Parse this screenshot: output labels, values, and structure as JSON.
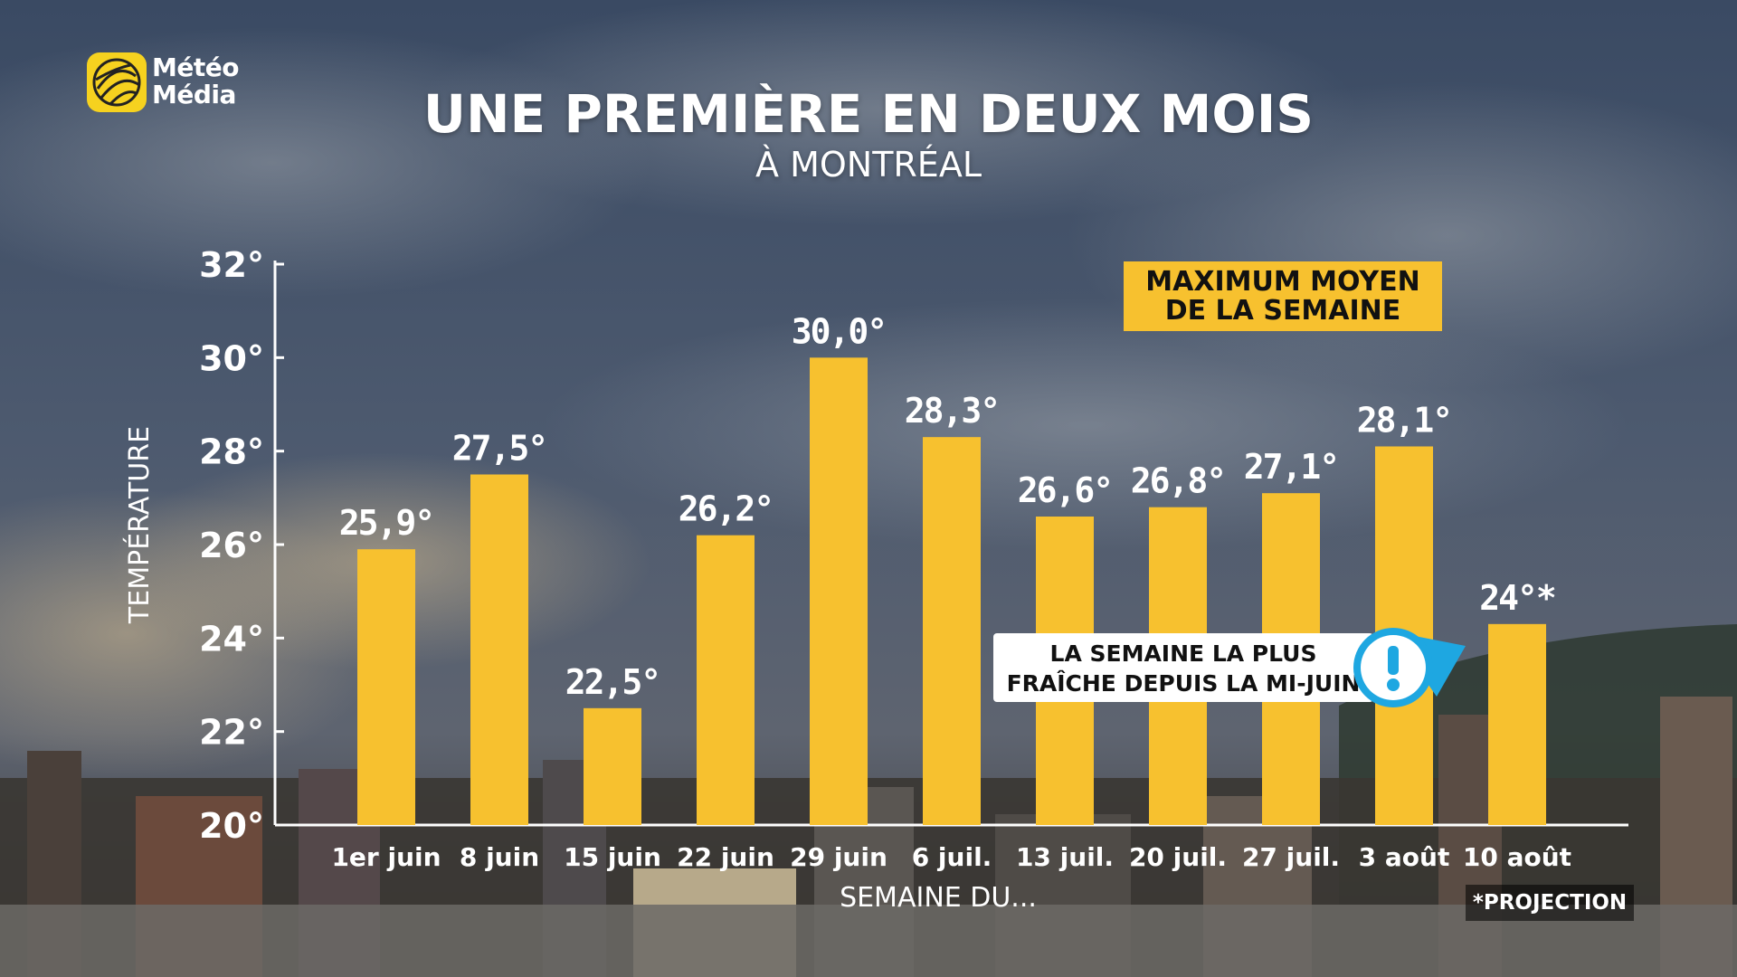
{
  "brand": {
    "line1": "Météo",
    "line2": "Média",
    "logo_icon": "globe-icon",
    "logo_color": "#f6d21f"
  },
  "header": {
    "title": "UNE PREMIÈRE EN DEUX MOIS",
    "subtitle": "À MONTRÉAL"
  },
  "legend": {
    "line1": "MAXIMUM MOYEN",
    "line2": "DE LA SEMAINE",
    "color": "#f7c12f"
  },
  "callout": {
    "line1": "LA SEMAINE LA PLUS",
    "line2": "FRAÎCHE DEPUIS LA MI-JUIN",
    "icon": "exclamation-icon",
    "icon_color": "#1ea7e1"
  },
  "footnote": "*PROJECTION",
  "chart_data": {
    "type": "bar",
    "title": "UNE PREMIÈRE EN DEUX MOIS",
    "subtitle": "À MONTRÉAL",
    "xlabel": "SEMAINE DU...",
    "ylabel": "TEMPÉRATURE",
    "ylim": [
      20,
      32
    ],
    "yticks": [
      20,
      22,
      24,
      26,
      28,
      30,
      32
    ],
    "ytick_labels": [
      "20°",
      "22°",
      "24°",
      "26°",
      "28°",
      "30°",
      "32°"
    ],
    "categories": [
      "1er juin",
      "8 juin",
      "15 juin",
      "22 juin",
      "29 juin",
      "6 juil.",
      "13 juil.",
      "20 juil.",
      "27 juil.",
      "3 août",
      "10 août"
    ],
    "values": [
      25.9,
      27.5,
      22.5,
      26.2,
      30.0,
      28.3,
      26.6,
      26.8,
      27.1,
      28.1,
      24.3
    ],
    "value_labels": [
      "25,9°",
      "27,5°",
      "22,5°",
      "26,2°",
      "30,0°",
      "28,3°",
      "26,6°",
      "26,8°",
      "27,1°",
      "28,1°",
      "24°*"
    ],
    "bar_color": "#f7c12f",
    "grid": false,
    "legend_position": "top-right"
  }
}
